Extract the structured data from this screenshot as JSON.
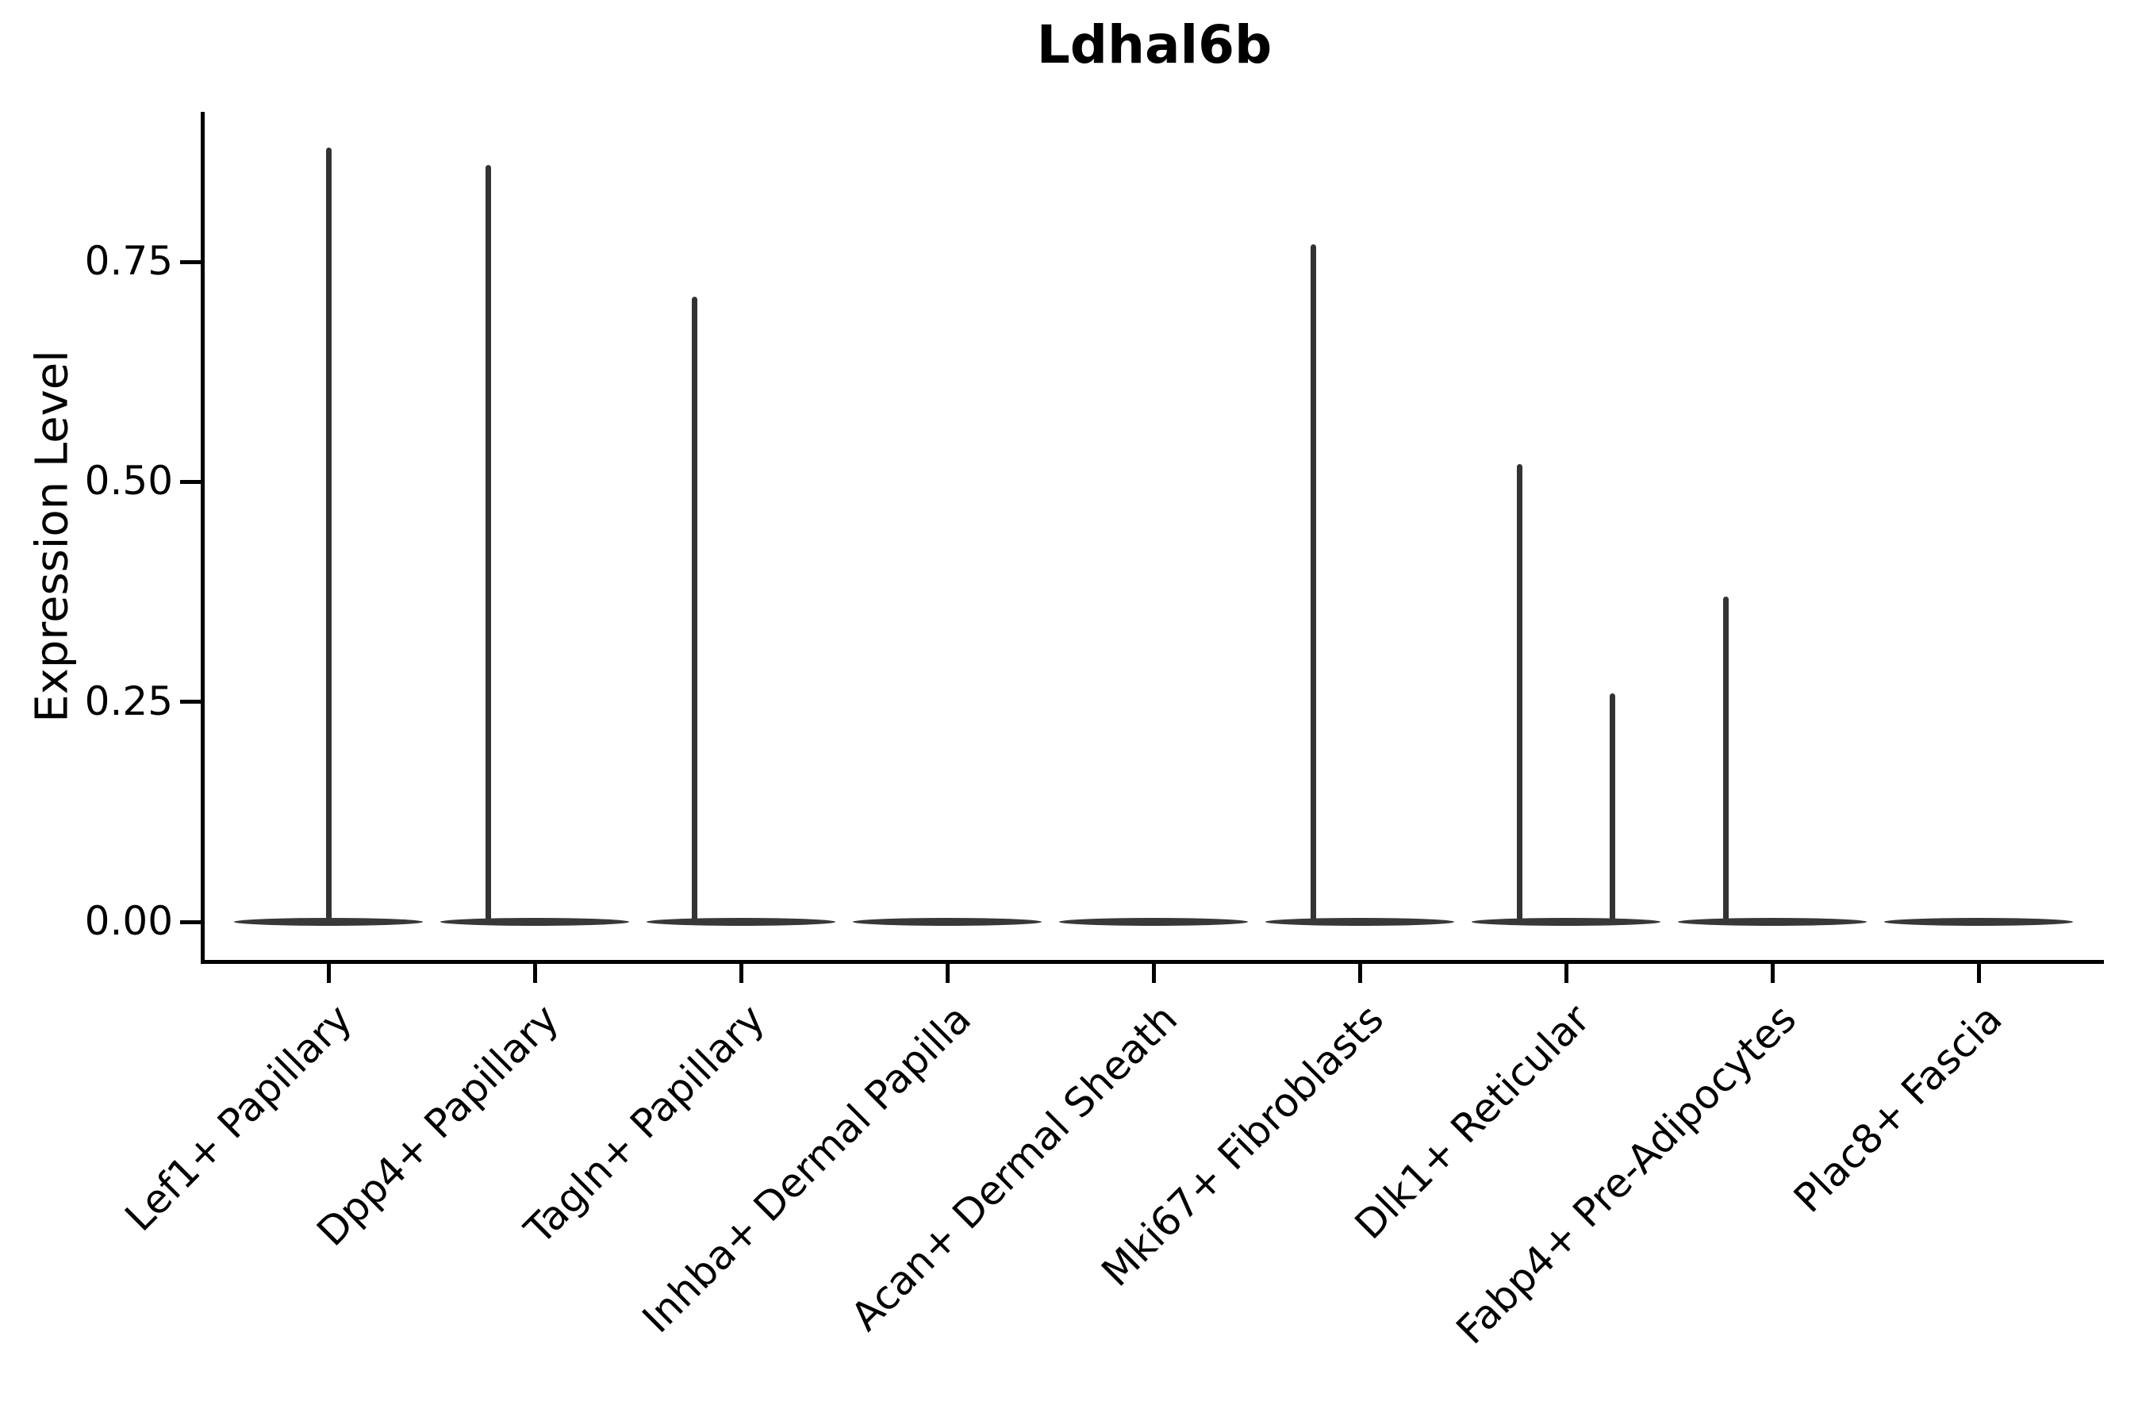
{
  "chart_data": {
    "type": "violin",
    "title": "Ldhal6b",
    "xlabel": "",
    "ylabel": "Expression Level",
    "ylim": [
      -0.043,
      0.92
    ],
    "yticks": [
      0.0,
      0.25,
      0.5,
      0.75
    ],
    "ytick_labels": [
      "0.00",
      "0.25",
      "0.50",
      "0.75"
    ],
    "grid": false,
    "legend": null,
    "categories": [
      "Lef1+ Papillary",
      "Dpp4+ Papillary",
      "Tagln+ Papillary",
      "Inhba+ Dermal Papilla",
      "Acan+ Dermal Sheath",
      "Mki67+ Fibroblasts",
      "Dlk1+ Reticular",
      "Fabp4+ Pre-Adipocytes",
      "Plac8+ Fascia"
    ],
    "violins": [
      {
        "category": "Lef1+ Papillary",
        "base_value": 0,
        "spikes": [
          {
            "offset": 0.0,
            "max": 0.88
          }
        ]
      },
      {
        "category": "Dpp4+ Papillary",
        "base_value": 0,
        "spikes": [
          {
            "offset": -0.225,
            "max": 0.86
          }
        ]
      },
      {
        "category": "Tagln+ Papillary",
        "base_value": 0,
        "spikes": [
          {
            "offset": -0.225,
            "max": 0.71
          }
        ]
      },
      {
        "category": "Inhba+ Dermal Papilla",
        "base_value": 0,
        "spikes": []
      },
      {
        "category": "Acan+ Dermal Sheath",
        "base_value": 0,
        "spikes": []
      },
      {
        "category": "Mki67+ Fibroblasts",
        "base_value": 0,
        "spikes": [
          {
            "offset": -0.225,
            "max": 0.77
          }
        ]
      },
      {
        "category": "Dlk1+ Reticular",
        "base_value": 0,
        "spikes": [
          {
            "offset": -0.225,
            "max": 0.52
          },
          {
            "offset": 0.225,
            "max": 0.26
          }
        ]
      },
      {
        "category": "Fabp4+ Pre-Adipocytes",
        "base_value": 0,
        "spikes": [
          {
            "offset": -0.225,
            "max": 0.37
          }
        ]
      },
      {
        "category": "Plac8+ Fascia",
        "base_value": 0,
        "spikes": []
      }
    ],
    "colors": {
      "violin": "#333333",
      "axis": "#000000",
      "text": "#000000",
      "background": "#ffffff"
    }
  }
}
